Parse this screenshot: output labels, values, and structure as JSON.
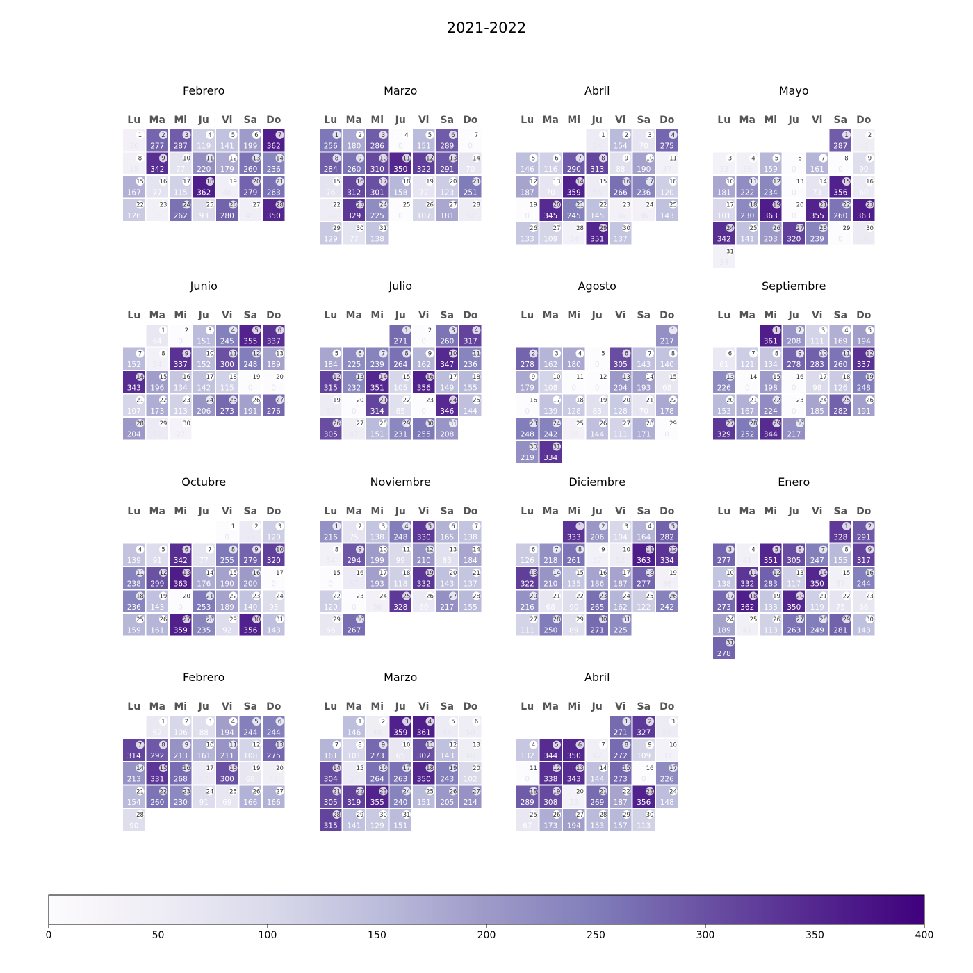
{
  "chart_data": {
    "type": "heatmap",
    "title": "2021-2022",
    "weekday_labels": [
      "Lu",
      "Ma",
      "Mi",
      "Ju",
      "Vi",
      "Sa",
      "Do"
    ],
    "colormap": [
      "#fcfbfd",
      "#efedf5",
      "#dadaeb",
      "#bcbddc",
      "#9e9ac8",
      "#807dba",
      "#6a51a3",
      "#54278f",
      "#3f007d"
    ],
    "value_range": [
      0,
      400
    ],
    "colorbar_ticks": [
      0,
      50,
      100,
      150,
      200,
      250,
      300,
      350,
      400
    ],
    "months": [
      {
        "name": "Febrero",
        "start_weekday": 0,
        "values": [
          36,
          277,
          287,
          119,
          141,
          199,
          362,
          38,
          342,
          77,
          220,
          179,
          260,
          236,
          167,
          77,
          115,
          362,
          46,
          279,
          263,
          126,
          38,
          262,
          93,
          280,
          45,
          350
        ]
      },
      {
        "name": "Marzo",
        "start_weekday": 0,
        "values": [
          256,
          180,
          286,
          0,
          151,
          289,
          0,
          284,
          260,
          310,
          350,
          322,
          291,
          70,
          76,
          312,
          301,
          158,
          72,
          123,
          251,
          52,
          329,
          225,
          0,
          107,
          181,
          52,
          129,
          77,
          138
        ]
      },
      {
        "name": "Abril",
        "start_weekday": 3,
        "values": [
          54,
          154,
          70,
          275,
          146,
          116,
          290,
          313,
          88,
          190,
          37,
          187,
          70,
          359,
          55,
          266,
          236,
          120,
          0,
          345,
          245,
          145,
          36,
          36,
          143,
          133,
          109,
          34,
          351,
          137
        ]
      },
      {
        "name": "Mayo",
        "start_weekday": 5,
        "values": [
          287,
          47,
          33,
          38,
          159,
          0,
          161,
          0,
          90,
          181,
          222,
          234,
          0,
          73,
          356,
          60,
          101,
          230,
          363,
          0,
          355,
          260,
          363,
          342,
          141,
          203,
          320,
          239,
          0,
          56,
          34
        ]
      },
      {
        "name": "Junio",
        "start_weekday": 1,
        "values": [
          64,
          0,
          151,
          245,
          355,
          337,
          152,
          34,
          337,
          152,
          300,
          248,
          189,
          343,
          196,
          134,
          142,
          115,
          0,
          0,
          107,
          173,
          113,
          206,
          273,
          191,
          276,
          204,
          57,
          27
        ]
      },
      {
        "name": "Julio",
        "start_weekday": 3,
        "values": [
          271,
          0,
          260,
          317,
          184,
          225,
          239,
          264,
          162,
          347,
          236,
          315,
          232,
          351,
          105,
          356,
          149,
          155,
          55,
          0,
          314,
          85,
          0,
          346,
          144,
          305,
          47,
          151,
          231,
          255,
          208
        ]
      },
      {
        "name": "Agosto",
        "start_weekday": 6,
        "values": [
          217,
          278,
          162,
          180,
          0,
          305,
          143,
          140,
          179,
          108,
          0,
          0,
          204,
          193,
          68,
          0,
          139,
          128,
          83,
          128,
          70,
          178,
          248,
          242,
          36,
          144,
          111,
          171,
          0,
          219,
          334
        ]
      },
      {
        "name": "Septiembre",
        "start_weekday": 2,
        "values": [
          361,
          208,
          111,
          169,
          194,
          61,
          121,
          134,
          278,
          283,
          260,
          337,
          226,
          0,
          198,
          0,
          98,
          126,
          248,
          153,
          167,
          224,
          0,
          185,
          282,
          191,
          329,
          252,
          344,
          217
        ]
      },
      {
        "name": "Octubre",
        "start_weekday": 4,
        "values": [
          0,
          57,
          120,
          139,
          91,
          342,
          77,
          255,
          279,
          320,
          238,
          299,
          363,
          176,
          190,
          200,
          0,
          236,
          143,
          0,
          253,
          189,
          140,
          93,
          159,
          161,
          359,
          235,
          92,
          356,
          143
        ]
      },
      {
        "name": "Noviembre",
        "start_weekday": 0,
        "values": [
          216,
          75,
          138,
          248,
          330,
          165,
          138,
          34,
          294,
          199,
          99,
          210,
          83,
          184,
          0,
          57,
          193,
          118,
          332,
          143,
          137,
          120,
          0,
          36,
          328,
          60,
          217,
          155,
          66,
          267
        ]
      },
      {
        "name": "Diciembre",
        "start_weekday": 2,
        "values": [
          333,
          206,
          104,
          164,
          282,
          126,
          218,
          261,
          37,
          52,
          363,
          334,
          322,
          210,
          135,
          186,
          187,
          277,
          36,
          216,
          68,
          90,
          265,
          162,
          122,
          242,
          111,
          250,
          89,
          271,
          225
        ]
      },
      {
        "name": "Enero",
        "start_weekday": 5,
        "values": [
          328,
          291,
          277,
          41,
          351,
          305,
          247,
          155,
          317,
          138,
          332,
          283,
          117,
          350,
          37,
          244,
          273,
          362,
          133,
          350,
          119,
          75,
          66,
          189,
          41,
          113,
          263,
          249,
          281,
          143,
          278
        ]
      },
      {
        "name": "Febrero",
        "start_weekday": 1,
        "values": [
          62,
          106,
          88,
          194,
          244,
          244,
          314,
          292,
          213,
          161,
          211,
          108,
          275,
          213,
          331,
          268,
          57,
          300,
          68,
          42,
          154,
          260,
          230,
          91,
          69,
          166,
          166,
          90
        ]
      },
      {
        "name": "Marzo",
        "start_weekday": 1,
        "values": [
          146,
          48,
          359,
          361,
          55,
          50,
          161,
          101,
          273,
          65,
          302,
          143,
          48,
          304,
          57,
          264,
          263,
          350,
          243,
          102,
          305,
          319,
          355,
          240,
          151,
          205,
          214,
          315,
          141,
          129,
          151
        ]
      },
      {
        "name": "Abril",
        "start_weekday": 4,
        "values": [
          271,
          327,
          55,
          132,
          344,
          350,
          42,
          272,
          109,
          33,
          0,
          338,
          343,
          144,
          273,
          0,
          226,
          289,
          308,
          33,
          269,
          187,
          356,
          148,
          67,
          173,
          194,
          153,
          157,
          113
        ]
      }
    ]
  }
}
